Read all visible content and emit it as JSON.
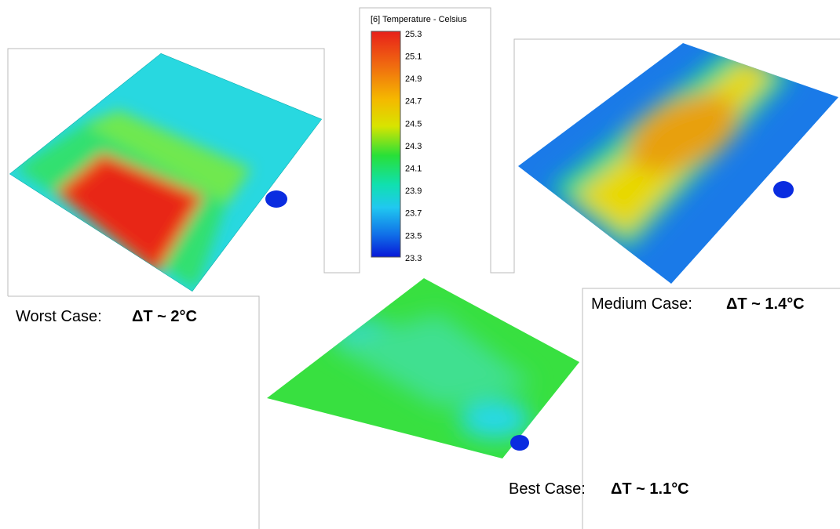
{
  "colorbar": {
    "title": "[6] Temperature - Celsius",
    "ticks": [
      25.3,
      25.1,
      24.9,
      24.7,
      24.5,
      24.3,
      24.1,
      23.9,
      23.7,
      23.5,
      23.3
    ]
  },
  "panels": [
    {
      "label": "Worst Case:",
      "delta_t": "ΔT ~ 2°C"
    },
    {
      "label": "Medium Case:",
      "delta_t": "ΔT ~ 1.4°C"
    },
    {
      "label": "Best Case:",
      "delta_t": "ΔT ~ 1.1°C"
    }
  ]
}
